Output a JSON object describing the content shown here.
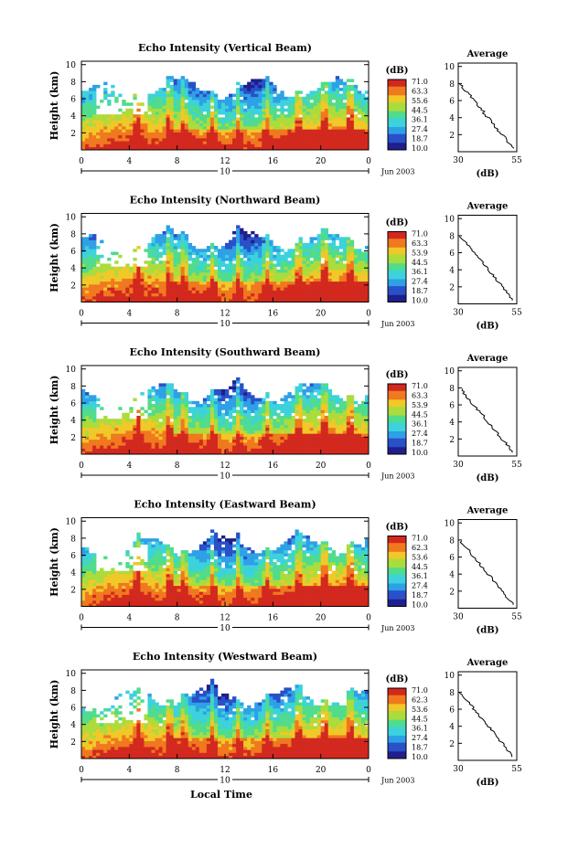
{
  "chart_data": [
    {
      "type": "heatmap",
      "title": "Echo Intensity (Vertical Beam)",
      "ylabel": "Height (km)",
      "yticks": [
        "2",
        "4",
        "6",
        "8",
        "10"
      ],
      "xticks": [
        "0",
        "4",
        "8",
        "12",
        "16",
        "20",
        "0"
      ],
      "day_label": "10",
      "date_label": "Jun 2003",
      "colorbar_label": "(dB)",
      "colorbar_ticks": [
        "71.0",
        "63.3",
        "55.6",
        "44.5",
        "36.1",
        "27.4",
        "18.7",
        "10.0"
      ],
      "avg_title": "Average",
      "avg_xticks": [
        "30",
        "55"
      ],
      "avg_xlabel": "(dB)",
      "avg_yticks": [
        "2",
        "4",
        "6",
        "8",
        "10"
      ]
    },
    {
      "type": "heatmap",
      "title": "Echo Intensity (Northward Beam)",
      "ylabel": "Height (km)",
      "yticks": [
        "2",
        "4",
        "6",
        "8",
        "10"
      ],
      "xticks": [
        "0",
        "4",
        "8",
        "12",
        "16",
        "20",
        "0"
      ],
      "day_label": "10",
      "date_label": "Jun 2003",
      "colorbar_label": "(dB)",
      "colorbar_ticks": [
        "71.0",
        "63.3",
        "53.9",
        "44.5",
        "36.1",
        "27.4",
        "18.7",
        "10.0"
      ],
      "avg_title": "Average",
      "avg_xticks": [
        "30",
        "55"
      ],
      "avg_xlabel": "(dB)",
      "avg_yticks": [
        "2",
        "4",
        "6",
        "8",
        "10"
      ]
    },
    {
      "type": "heatmap",
      "title": "Echo Intensity (Southward Beam)",
      "ylabel": "Height (km)",
      "yticks": [
        "2",
        "4",
        "6",
        "8",
        "10"
      ],
      "xticks": [
        "0",
        "4",
        "8",
        "12",
        "16",
        "20",
        "0"
      ],
      "day_label": "10",
      "date_label": "Jun 2003",
      "colorbar_label": "(dB)",
      "colorbar_ticks": [
        "71.0",
        "63.3",
        "53.9",
        "44.5",
        "36.1",
        "27.4",
        "18.7",
        "10.0"
      ],
      "avg_title": "Average",
      "avg_xticks": [
        "30",
        "55"
      ],
      "avg_xlabel": "(dB)",
      "avg_yticks": [
        "2",
        "4",
        "6",
        "8",
        "10"
      ]
    },
    {
      "type": "heatmap",
      "title": "Echo Intensity (Eastward Beam)",
      "ylabel": "Height (km)",
      "yticks": [
        "2",
        "4",
        "6",
        "8",
        "10"
      ],
      "xticks": [
        "0",
        "4",
        "8",
        "12",
        "16",
        "20",
        "0"
      ],
      "day_label": "10",
      "date_label": "Jun 2003",
      "colorbar_label": "(dB)",
      "colorbar_ticks": [
        "71.0",
        "62.3",
        "53.6",
        "44.5",
        "36.1",
        "27.4",
        "18.7",
        "10.0"
      ],
      "avg_title": "Average",
      "avg_xticks": [
        "30",
        "55"
      ],
      "avg_xlabel": "(dB)",
      "avg_yticks": [
        "2",
        "4",
        "6",
        "8",
        "10"
      ]
    },
    {
      "type": "heatmap",
      "title": "Echo Intensity (Westward Beam)",
      "ylabel": "Height (km)",
      "yticks": [
        "2",
        "4",
        "6",
        "8",
        "10"
      ],
      "xticks": [
        "0",
        "4",
        "8",
        "12",
        "16",
        "20",
        "0"
      ],
      "day_label": "10",
      "date_label": "Jun 2003",
      "colorbar_label": "(dB)",
      "colorbar_ticks": [
        "71.0",
        "62.3",
        "53.6",
        "44.5",
        "36.1",
        "27.4",
        "18.7",
        "10.0"
      ],
      "avg_title": "Average",
      "avg_xticks": [
        "30",
        "55"
      ],
      "avg_xlabel": "(dB)",
      "avg_yticks": [
        "2",
        "4",
        "6",
        "8",
        "10"
      ],
      "xlabel": "Local Time"
    }
  ],
  "colormap": [
    "#1e1e8c",
    "#2850c8",
    "#2ea0e6",
    "#3cd2dc",
    "#50dc8c",
    "#aadc3c",
    "#f0c828",
    "#f0781e",
    "#d2281e"
  ]
}
